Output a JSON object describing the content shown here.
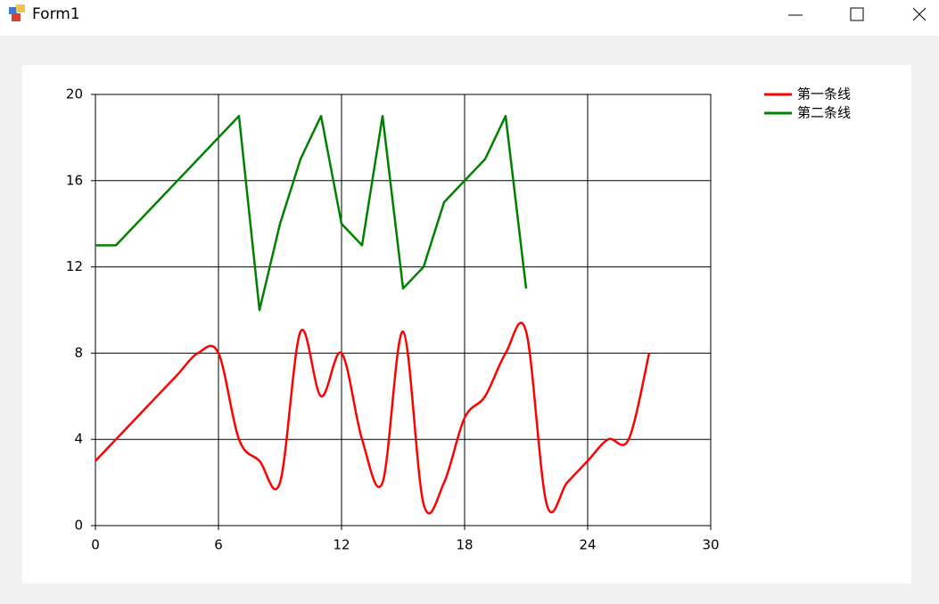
{
  "window": {
    "title": "Form1"
  },
  "chart_data": {
    "type": "line",
    "x": [
      0,
      1,
      2,
      3,
      4,
      5,
      6,
      7,
      8,
      9,
      10,
      11,
      12,
      13,
      14,
      15,
      16,
      17,
      18,
      19,
      20,
      21,
      22,
      23,
      24,
      25,
      26,
      27
    ],
    "series": [
      {
        "name": "第一条线",
        "color": "#ff0000",
        "smooth": true,
        "values": [
          3,
          4,
          5,
          6,
          7,
          8,
          8,
          4,
          3,
          2,
          9,
          6,
          8,
          4,
          2,
          9,
          1,
          2,
          5,
          6,
          8,
          9,
          1,
          2,
          3,
          4,
          4,
          8
        ]
      },
      {
        "name": "第二条线",
        "color": "#008000",
        "smooth": false,
        "values": [
          13,
          13,
          14,
          15,
          16,
          17,
          18,
          19,
          10,
          14,
          17,
          19,
          14,
          13,
          19,
          11,
          12,
          15,
          16,
          17,
          19,
          11,
          null,
          null,
          null,
          null,
          null,
          null
        ]
      }
    ],
    "xlim": [
      0,
      30
    ],
    "xticks": [
      0,
      6,
      12,
      18,
      24,
      30
    ],
    "ylim": [
      0,
      20
    ],
    "yticks": [
      0,
      4,
      8,
      12,
      16,
      20
    ],
    "grid": true,
    "legend": "top-right"
  }
}
